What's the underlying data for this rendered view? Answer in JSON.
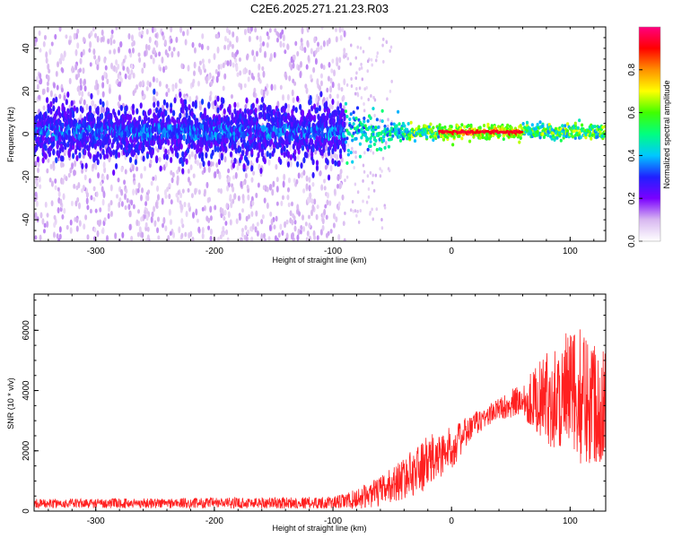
{
  "figure": {
    "title": "C2E6.2025.271.21.23.R03"
  },
  "chart_data": [
    {
      "type": "heatmap",
      "xlabel": "Height of straight line (km)",
      "ylabel": "Frequency (Hz)",
      "xlim": [
        -352,
        130
      ],
      "ylim": [
        -50,
        50
      ],
      "xticks": [
        -300,
        -200,
        -100,
        0,
        100
      ],
      "yticks": [
        -40,
        -20,
        0,
        20,
        40
      ],
      "grid": false,
      "colorbar": {
        "label": "Normalized spectral amplitude",
        "range": [
          0,
          1
        ],
        "ticks": [
          "0.0",
          "0.2",
          "0.4",
          "0.6",
          "0.8"
        ],
        "tick_values": [
          0.0,
          0.2,
          0.4,
          0.6,
          0.8
        ],
        "colors": [
          "#ffffff",
          "#d8b8f0",
          "#7a00ff",
          "#2020ff",
          "#00c8ff",
          "#00ff80",
          "#40ff00",
          "#ffff00",
          "#ff9000",
          "#ff0000",
          "#ff0080"
        ]
      },
      "band": {
        "center_frequency_hz": 1,
        "noise_region_x": [
          -352,
          -90
        ],
        "scatter_halfwidth_hz": 50,
        "core_halfwidth_hz_at_start": 11,
        "core_halfwidth_hz_at_end": 3,
        "peak_region_x": [
          -10,
          60
        ],
        "peak_amplitude": 0.95
      }
    },
    {
      "type": "line",
      "xlabel": "Height of straight line (km)",
      "ylabel": "SNR (10 * v/v)",
      "xlim": [
        -352,
        130
      ],
      "ylim": [
        0,
        7200
      ],
      "xticks": [
        -300,
        -200,
        -100,
        0,
        100
      ],
      "yticks": [
        0,
        2000,
        4000,
        6000
      ],
      "grid": false,
      "series": [
        {
          "color": "#ff2020",
          "envelope": {
            "x": [
              -352,
              -100,
              -85,
              -60,
              -40,
              -20,
              0,
              20,
              40,
              60,
              80,
              100,
              115,
              130
            ],
            "mean": [
              250,
              280,
              350,
              650,
              1100,
              1600,
              2100,
              2900,
              3400,
              3700,
              3750,
              3850,
              3800,
              3600
            ],
            "spread": [
              150,
              200,
              300,
              500,
              700,
              900,
              700,
              400,
              350,
              600,
              1500,
              2200,
              2300,
              2000
            ]
          }
        }
      ]
    }
  ]
}
